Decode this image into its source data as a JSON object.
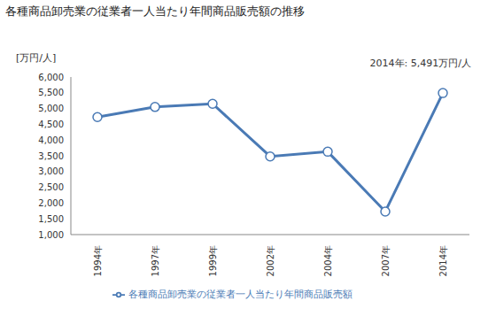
{
  "chart_data": {
    "type": "line",
    "title": "各種商品卸売業の従業者一人当たり年間商品販売額の推移",
    "y_label": "[万円/人]",
    "annotation": "2014年: 5,491万円/人",
    "categories": [
      "1994年",
      "1997年",
      "1999年",
      "2002年",
      "2004年",
      "2007年",
      "2014年"
    ],
    "series": [
      {
        "name": "各種商品卸売業の従業者一人当たり年間商品販売額",
        "color": "#4a7ab5",
        "values": [
          4730,
          5050,
          5150,
          3480,
          3630,
          1730,
          5491
        ],
        "marker": "circle"
      }
    ],
    "ylim": [
      1000,
      6000
    ],
    "yticks": [
      {
        "value": 1000,
        "label": "1,000"
      },
      {
        "value": 1500,
        "label": "1,500"
      },
      {
        "value": 2000,
        "label": "2,000"
      },
      {
        "value": 2500,
        "label": "2,500"
      },
      {
        "value": 3000,
        "label": "3,000"
      },
      {
        "value": 3500,
        "label": "3,500"
      },
      {
        "value": 4000,
        "label": "4,000"
      },
      {
        "value": 4500,
        "label": "4,500"
      },
      {
        "value": 5000,
        "label": "5,000"
      },
      {
        "value": 5500,
        "label": "5,500"
      },
      {
        "value": 6000,
        "label": "6,000"
      }
    ],
    "grid": false,
    "legend": "bottom"
  }
}
